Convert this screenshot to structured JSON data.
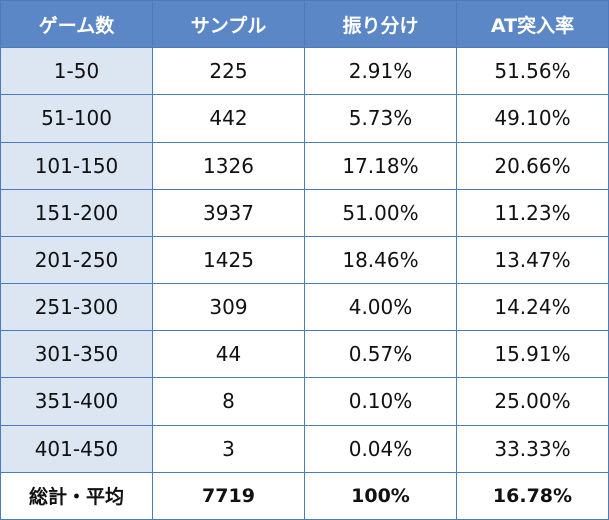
{
  "table": {
    "header": [
      "ゲーム数",
      "サンプル",
      "振り分け",
      "AT突入率"
    ],
    "rows": [
      [
        "1-50",
        "225",
        "2.91%",
        "51.56%"
      ],
      [
        "51-100",
        "442",
        "5.73%",
        "49.10%"
      ],
      [
        "101-150",
        "1326",
        "17.18%",
        "20.66%"
      ],
      [
        "151-200",
        "3937",
        "51.00%",
        "11.23%"
      ],
      [
        "201-250",
        "1425",
        "18.46%",
        "13.47%"
      ],
      [
        "251-300",
        "309",
        "4.00%",
        "14.24%"
      ],
      [
        "301-350",
        "44",
        "0.57%",
        "15.91%"
      ],
      [
        "351-400",
        "8",
        "0.10%",
        "25.00%"
      ],
      [
        "401-450",
        "3",
        "0.04%",
        "33.33%"
      ]
    ],
    "total": [
      "総計・平均",
      "7719",
      "100%",
      "16.78%"
    ]
  }
}
